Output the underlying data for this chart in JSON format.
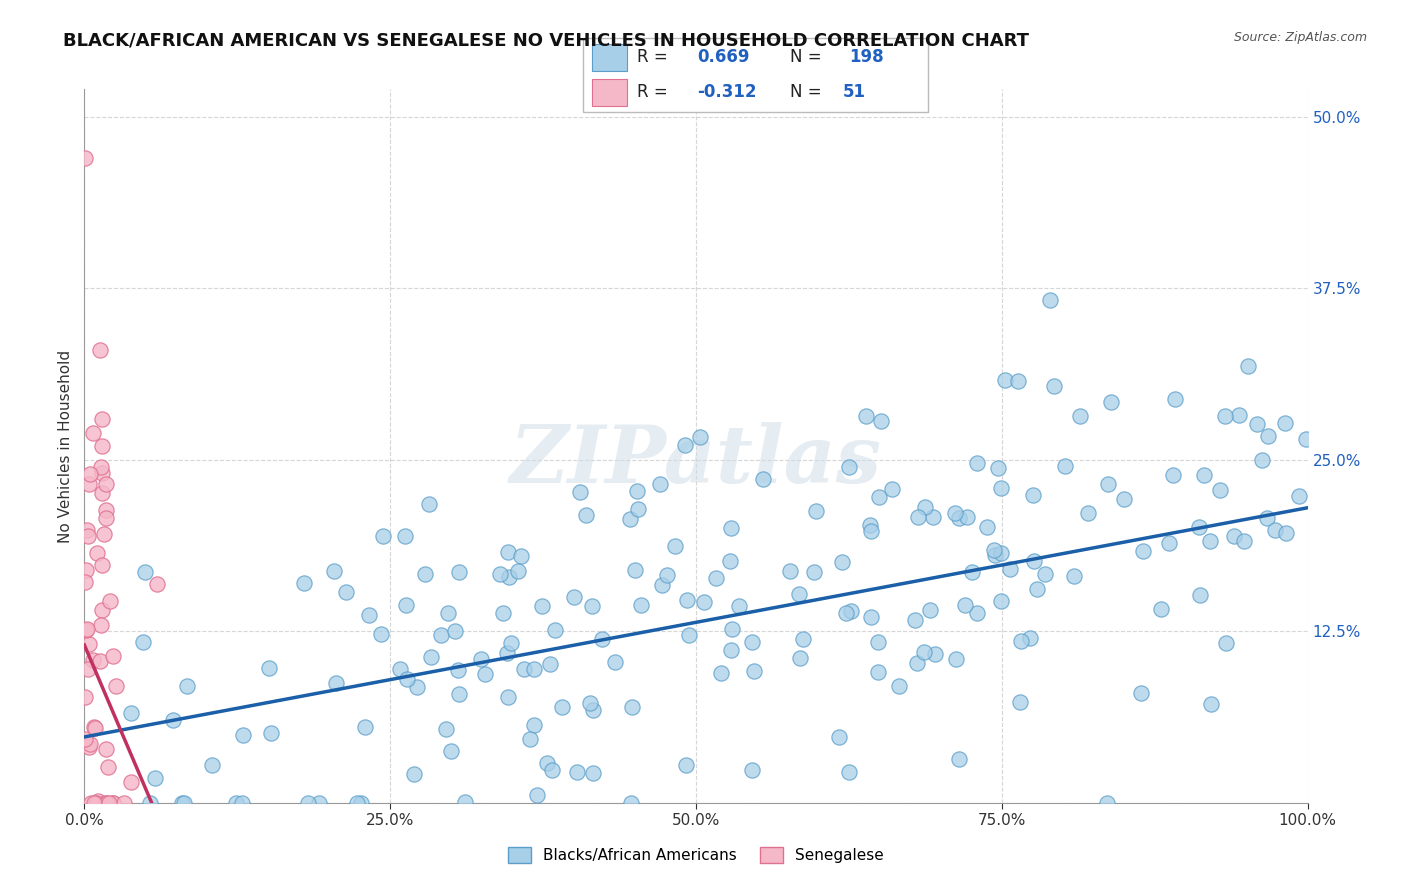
{
  "title": "BLACK/AFRICAN AMERICAN VS SENEGALESE NO VEHICLES IN HOUSEHOLD CORRELATION CHART",
  "source": "Source: ZipAtlas.com",
  "ylabel": "No Vehicles in Household",
  "xlim": [
    0.0,
    1.0
  ],
  "ylim": [
    0.0,
    0.52
  ],
  "xticks": [
    0.0,
    0.25,
    0.5,
    0.75,
    1.0
  ],
  "xtick_labels": [
    "0.0%",
    "25.0%",
    "50.0%",
    "75.0%",
    "100.0%"
  ],
  "yticks": [
    0.0,
    0.125,
    0.25,
    0.375,
    0.5
  ],
  "ytick_labels": [
    "",
    "12.5%",
    "25.0%",
    "37.5%",
    "50.0%"
  ],
  "blue_color": "#a8cfe8",
  "blue_edge": "#5b9ec9",
  "pink_color": "#f5b8c8",
  "pink_edge": "#e07090",
  "line_blue": "#1a5fa8",
  "line_pink": "#c03060",
  "R_blue": 0.669,
  "N_blue": 198,
  "R_pink": -0.312,
  "N_pink": 51,
  "legend_blue_label": "Blacks/African Americans",
  "legend_pink_label": "Senegalese",
  "watermark": "ZIPatlas",
  "background_color": "#ffffff",
  "grid_color": "#cccccc",
  "title_fontsize": 13,
  "axis_label_fontsize": 11,
  "tick_fontsize": 11,
  "legend_text_color": "#2060c0",
  "blue_line_y_start": 0.048,
  "blue_line_y_end": 0.215,
  "pink_line_x_start": 0.0,
  "pink_line_x_end": 0.055,
  "pink_line_y_start": 0.115,
  "pink_line_y_end": 0.0
}
